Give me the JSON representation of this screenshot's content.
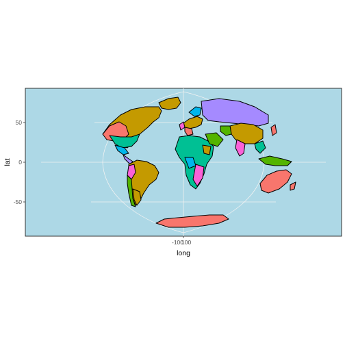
{
  "chart_data": {
    "type": "map",
    "xlabel": "long",
    "ylabel": "lat",
    "x_ticks": [
      "-100",
      "100"
    ],
    "y_ticks": [
      "50",
      "0",
      "-50"
    ],
    "y_tick_values": [
      50,
      0,
      -50
    ],
    "ylim": [
      -90,
      90
    ],
    "grid": true,
    "legend": "none",
    "colors": {
      "panel": "#add8e6",
      "grid": "#f2f2f2",
      "outline": "#000000"
    },
    "fill_palette": [
      "#f8766d",
      "#c49a00",
      "#53b400",
      "#00c094",
      "#00b6eb",
      "#a58aff",
      "#fb61d7"
    ]
  }
}
